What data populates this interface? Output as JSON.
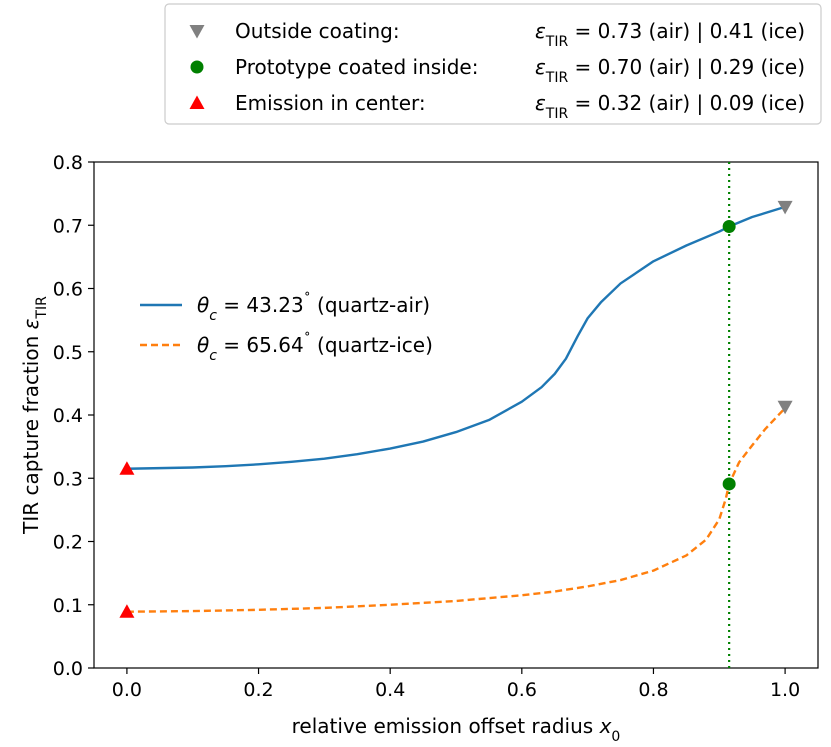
{
  "chart_data": {
    "type": "line",
    "xlabel": "relative emission offset radius",
    "xlabel_var": "x",
    "xlabel_sub": "0",
    "ylabel": "TIR capture fraction",
    "ylabel_var": "ε",
    "ylabel_sub": "TIR",
    "xlim": [
      -0.05,
      1.05
    ],
    "ylim": [
      0,
      0.8
    ],
    "xticks": [
      0.0,
      0.2,
      0.4,
      0.6,
      0.8,
      1.0
    ],
    "xtick_labels": [
      "0.0",
      "0.2",
      "0.4",
      "0.6",
      "0.8",
      "1.0"
    ],
    "yticks": [
      0.0,
      0.1,
      0.2,
      0.3,
      0.4,
      0.5,
      0.6,
      0.7,
      0.8
    ],
    "ytick_labels": [
      "0.0",
      "0.1",
      "0.2",
      "0.3",
      "0.4",
      "0.5",
      "0.6",
      "0.7",
      "0.8"
    ],
    "grid": false,
    "vline": {
      "x": 0.915,
      "color": "#008000",
      "style": "dotted"
    },
    "series": [
      {
        "name": "θc = 43.23˚ (quartz-air)",
        "name_parts": {
          "var": "θ",
          "sub": "c",
          "value": " = 43.23",
          "deg": "˚",
          "suffix": " (quartz-air)"
        },
        "color": "#1f77b4",
        "style": "solid",
        "x": [
          0.0,
          0.05,
          0.1,
          0.15,
          0.2,
          0.25,
          0.3,
          0.35,
          0.4,
          0.45,
          0.5,
          0.55,
          0.6,
          0.63,
          0.65,
          0.667,
          0.685,
          0.7,
          0.72,
          0.75,
          0.8,
          0.85,
          0.9,
          0.915,
          0.95,
          1.0
        ],
        "y": [
          0.315,
          0.316,
          0.317,
          0.319,
          0.322,
          0.326,
          0.331,
          0.338,
          0.347,
          0.358,
          0.373,
          0.392,
          0.421,
          0.444,
          0.465,
          0.489,
          0.525,
          0.553,
          0.578,
          0.608,
          0.643,
          0.668,
          0.69,
          0.698,
          0.713,
          0.729
        ]
      },
      {
        "name": "θc = 65.64˚ (quartz-ice)",
        "name_parts": {
          "var": "θ",
          "sub": "c",
          "value": " = 65.64",
          "deg": "˚",
          "suffix": " (quartz-ice)"
        },
        "color": "#ff7f0e",
        "style": "dashed",
        "x": [
          0.0,
          0.1,
          0.2,
          0.3,
          0.4,
          0.5,
          0.6,
          0.65,
          0.7,
          0.75,
          0.8,
          0.85,
          0.88,
          0.9,
          0.91,
          0.915,
          0.93,
          0.95,
          0.97,
          1.0
        ],
        "y": [
          0.089,
          0.09,
          0.092,
          0.095,
          0.1,
          0.106,
          0.115,
          0.121,
          0.129,
          0.139,
          0.154,
          0.178,
          0.203,
          0.235,
          0.268,
          0.291,
          0.325,
          0.352,
          0.378,
          0.411
        ]
      }
    ],
    "markers": [
      {
        "name": "Outside coating:",
        "shape": "triangle-down",
        "color": "#808080",
        "points": [
          {
            "x": 1.0,
            "y": 0.729
          },
          {
            "x": 1.0,
            "y": 0.413
          }
        ],
        "values_text": {
          "eps": "ε",
          "sub": "TIR",
          "air": " = 0.73 (air) | 0.41 (ice)"
        }
      },
      {
        "name": "Prototype coated inside:",
        "shape": "circle",
        "color": "#008000",
        "points": [
          {
            "x": 0.915,
            "y": 0.698
          },
          {
            "x": 0.915,
            "y": 0.291
          }
        ],
        "values_text": {
          "eps": "ε",
          "sub": "TIR",
          "air": " = 0.70 (air) | 0.29 (ice)"
        }
      },
      {
        "name": "Emission in center:",
        "shape": "triangle-up",
        "color": "#ff0000",
        "points": [
          {
            "x": 0.0,
            "y": 0.315
          },
          {
            "x": 0.0,
            "y": 0.089
          }
        ],
        "values_text": {
          "eps": "ε",
          "sub": "TIR",
          "air": " = 0.32 (air) | 0.09 (ice)"
        }
      }
    ],
    "legend_top_placement": "top-right, outside plot",
    "legend_lines_placement": "center-left"
  }
}
